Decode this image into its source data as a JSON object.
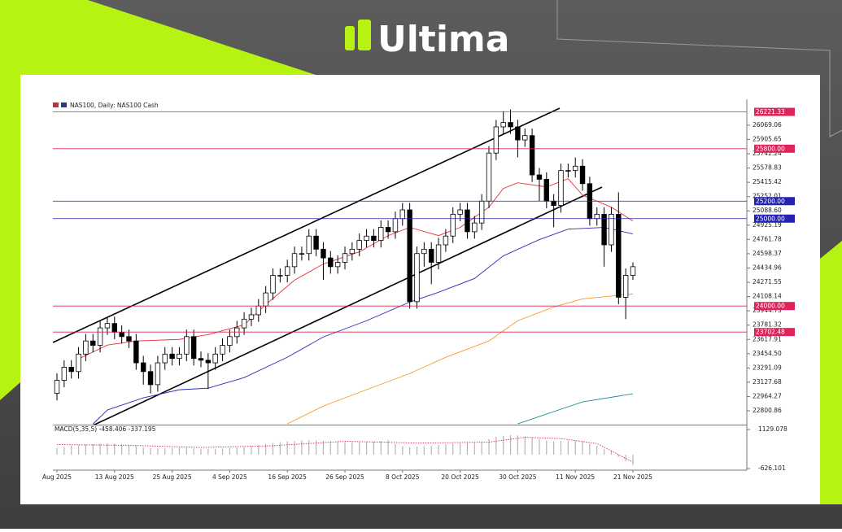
{
  "logo": "Ultima",
  "chart_data": {
    "type": "candlestick",
    "title": "NAS100, Daily:  NAS100 Cash",
    "categories": [
      "Aug 2025",
      null,
      null,
      null,
      null,
      null,
      null,
      null,
      "13 Aug 2025",
      null,
      null,
      null,
      null,
      null,
      null,
      null,
      "25 Aug 2025",
      null,
      null,
      null,
      null,
      null,
      null,
      null,
      "4 Sep 2025",
      null,
      null,
      null,
      null,
      null,
      null,
      null,
      "16 Sep 2025",
      null,
      null,
      null,
      null,
      null,
      null,
      null,
      "26 Sep 2025",
      null,
      null,
      null,
      null,
      null,
      null,
      null,
      "8 Oct 2025",
      null,
      null,
      null,
      null,
      null,
      null,
      null,
      "20 Oct 2025",
      null,
      null,
      null,
      null,
      null,
      null,
      null,
      "30 Oct 2025",
      null,
      null,
      null,
      null,
      null,
      null,
      null,
      "11 Nov 2025",
      null,
      null,
      null,
      null,
      null,
      null,
      null,
      "21 Nov 2025"
    ],
    "open": [
      23000,
      23150,
      23300,
      23250,
      23450,
      23600,
      23550,
      23750,
      23800,
      23700,
      23650,
      23600,
      23350,
      23250,
      23100,
      23350,
      23450,
      23400,
      23450,
      23650,
      23400,
      23380,
      23350,
      23450,
      23550,
      23650,
      23750,
      23850,
      23900,
      24000,
      24150,
      24350,
      24350,
      24450,
      24600,
      24600,
      24800,
      24650,
      24550,
      24450,
      24500,
      24600,
      24650,
      24750,
      24800,
      24750,
      24900,
      24850,
      25000,
      25100,
      24050,
      24600,
      24650,
      24500,
      24700,
      24800,
      25050,
      25100,
      24850,
      24950,
      25200,
      25750,
      26050,
      26100,
      26050,
      25900,
      25950,
      25500,
      25450,
      25200,
      25150,
      25550,
      25550,
      25600,
      25400,
      25000,
      25050,
      24700,
      25050,
      24100,
      24350
    ],
    "high": [
      23230,
      23380,
      23380,
      23530,
      23680,
      23680,
      23830,
      23880,
      23880,
      23780,
      23730,
      23680,
      23430,
      23330,
      23430,
      23530,
      23530,
      23530,
      23730,
      23730,
      23480,
      23460,
      23530,
      23630,
      23730,
      23830,
      23930,
      23980,
      24080,
      24230,
      24430,
      24430,
      24530,
      24680,
      24680,
      24880,
      24880,
      24730,
      24630,
      24580,
      24680,
      24730,
      24830,
      24880,
      24880,
      24980,
      24980,
      25080,
      25180,
      25180,
      24680,
      24730,
      24730,
      24780,
      24880,
      25130,
      25180,
      25180,
      25030,
      25280,
      25830,
      26130,
      26230,
      26250,
      26130,
      26030,
      26030,
      25580,
      25530,
      25280,
      25630,
      25630,
      25700,
      25680,
      25480,
      25130,
      25130,
      25130,
      25300,
      24430,
      24500
    ],
    "low": [
      22920,
      23070,
      23170,
      23170,
      23370,
      23470,
      23470,
      23670,
      23620,
      23570,
      23520,
      23270,
      23100,
      23000,
      23020,
      23270,
      23320,
      23320,
      23370,
      23320,
      23300,
      23050,
      23270,
      23370,
      23470,
      23570,
      23670,
      23770,
      23820,
      23920,
      24070,
      24270,
      24270,
      24370,
      24520,
      24520,
      24570,
      24300,
      24370,
      24370,
      24420,
      24520,
      24570,
      24670,
      24670,
      24670,
      24770,
      24770,
      24920,
      23970,
      23970,
      24450,
      24250,
      24420,
      24620,
      24720,
      24970,
      24770,
      24770,
      24870,
      25120,
      25670,
      25970,
      25970,
      25700,
      25820,
      25420,
      25200,
      25120,
      24900,
      25070,
      25470,
      25470,
      25320,
      24920,
      24920,
      24450,
      24620,
      24020,
      23850,
      24300
    ],
    "close": [
      23150,
      23300,
      23250,
      23450,
      23600,
      23550,
      23750,
      23800,
      23700,
      23650,
      23600,
      23350,
      23250,
      23100,
      23350,
      23450,
      23400,
      23450,
      23650,
      23400,
      23380,
      23350,
      23450,
      23550,
      23650,
      23750,
      23850,
      23900,
      24000,
      24150,
      24350,
      24350,
      24450,
      24600,
      24600,
      24800,
      24650,
      24550,
      24450,
      24500,
      24600,
      24650,
      24750,
      24800,
      24750,
      24900,
      24850,
      25000,
      25100,
      24050,
      24600,
      24650,
      24500,
      24700,
      24800,
      25050,
      25100,
      24850,
      24950,
      25200,
      25750,
      26050,
      26100,
      26050,
      25900,
      25950,
      25500,
      25450,
      25200,
      25150,
      25550,
      25550,
      25600,
      25400,
      25000,
      25050,
      24700,
      25050,
      24100,
      24350,
      24450
    ],
    "up_color": "#ffffff",
    "down_color": "#000000",
    "ylim": [
      22643,
      26338
    ],
    "yticks": [
      26069.06,
      25905.65,
      25742.24,
      25578.83,
      25415.42,
      25252.01,
      {
        "value": 25088.6,
        "label": "25088.60"
      },
      24925.19,
      24761.78,
      24598.37,
      24434.96,
      24271.55,
      24108.14,
      23944.73,
      23781.32,
      23617.91,
      {
        "value": 23454.5,
        "label": "23454.50"
      },
      23291.09,
      23127.68,
      22964.27,
      22800.86
    ],
    "levels": [
      {
        "value": 26221.33,
        "color": "#e0245a"
      },
      {
        "value": 25800,
        "label": "25800.00",
        "color": "#e0245a"
      },
      {
        "value": 25200,
        "label": "25200.00",
        "color": "#2323b0"
      },
      {
        "value": 25000,
        "label": "25000.00",
        "color": "#2323b0"
      },
      {
        "value": 24000,
        "label": "24000.00",
        "color": "#e0245a"
      },
      {
        "value": 23702.48,
        "color": "#e0245a"
      }
    ],
    "overlays": [
      {
        "color": "#e8323c",
        "x": [
          3,
          7,
          11,
          17,
          21,
          26,
          29,
          33,
          37,
          42,
          46,
          49,
          53,
          56,
          60,
          62,
          64,
          68,
          71,
          73,
          77,
          80
        ],
        "values": [
          23395,
          23553,
          23600,
          23618,
          23673,
          23785,
          24017,
          24296,
          24481,
          24620,
          24806,
          24899,
          24806,
          24899,
          25131,
          25345,
          25410,
          25363,
          25456,
          25270,
          25131,
          24973
        ]
      },
      {
        "color": "#2b2bb8",
        "x": [
          5,
          7,
          12,
          17,
          21,
          26,
          32,
          37,
          43,
          49,
          53,
          58,
          62,
          67,
          71,
          76,
          80
        ],
        "values": [
          22650,
          22810,
          22950,
          23042,
          23060,
          23181,
          23414,
          23646,
          23832,
          24045,
          24157,
          24315,
          24574,
          24760,
          24880,
          24899,
          24825
        ]
      },
      {
        "color": "#f59a2a",
        "x": [
          32,
          37,
          43,
          49,
          54,
          60,
          64,
          69,
          73,
          80
        ],
        "values": [
          22652,
          22856,
          23042,
          23228,
          23414,
          23600,
          23832,
          23989,
          24082,
          24138
        ]
      },
      {
        "color": "#1f8a9a",
        "x": [
          64,
          69,
          73,
          80
        ],
        "values": [
          22652,
          22792,
          22903,
          22996
        ]
      }
    ],
    "macd": {
      "label": "MACD(5,35,5) -458.406 -337.195",
      "ylim": [
        -626.101,
        1129.078
      ],
      "yticks": [
        1129.078,
        -626.101
      ],
      "histogram": [
        300,
        350,
        400,
        420,
        450,
        480,
        500,
        520,
        500,
        460,
        420,
        380,
        330,
        300,
        280,
        290,
        300,
        310,
        300,
        280,
        260,
        250,
        260,
        280,
        300,
        320,
        350,
        380,
        420,
        480,
        520,
        560,
        600,
        620,
        640,
        650,
        640,
        620,
        600,
        580,
        570,
        560,
        570,
        580,
        600,
        620,
        650,
        500,
        380,
        350,
        360,
        380,
        400,
        430,
        460,
        500,
        520,
        520,
        540,
        600,
        700,
        800,
        850,
        880,
        860,
        820,
        760,
        700,
        640,
        600,
        620,
        640,
        640,
        600,
        500,
        400,
        250,
        150,
        -100,
        -300,
        -458
      ],
      "histogram_color": "#b4b4b4",
      "signal_x": [
        0,
        10,
        20,
        30,
        40,
        50,
        60,
        65,
        70,
        75,
        80
      ],
      "signal": [
        450,
        420,
        320,
        400,
        600,
        520,
        560,
        780,
        720,
        500,
        -337
      ],
      "signal_color": "#e0245a"
    }
  }
}
